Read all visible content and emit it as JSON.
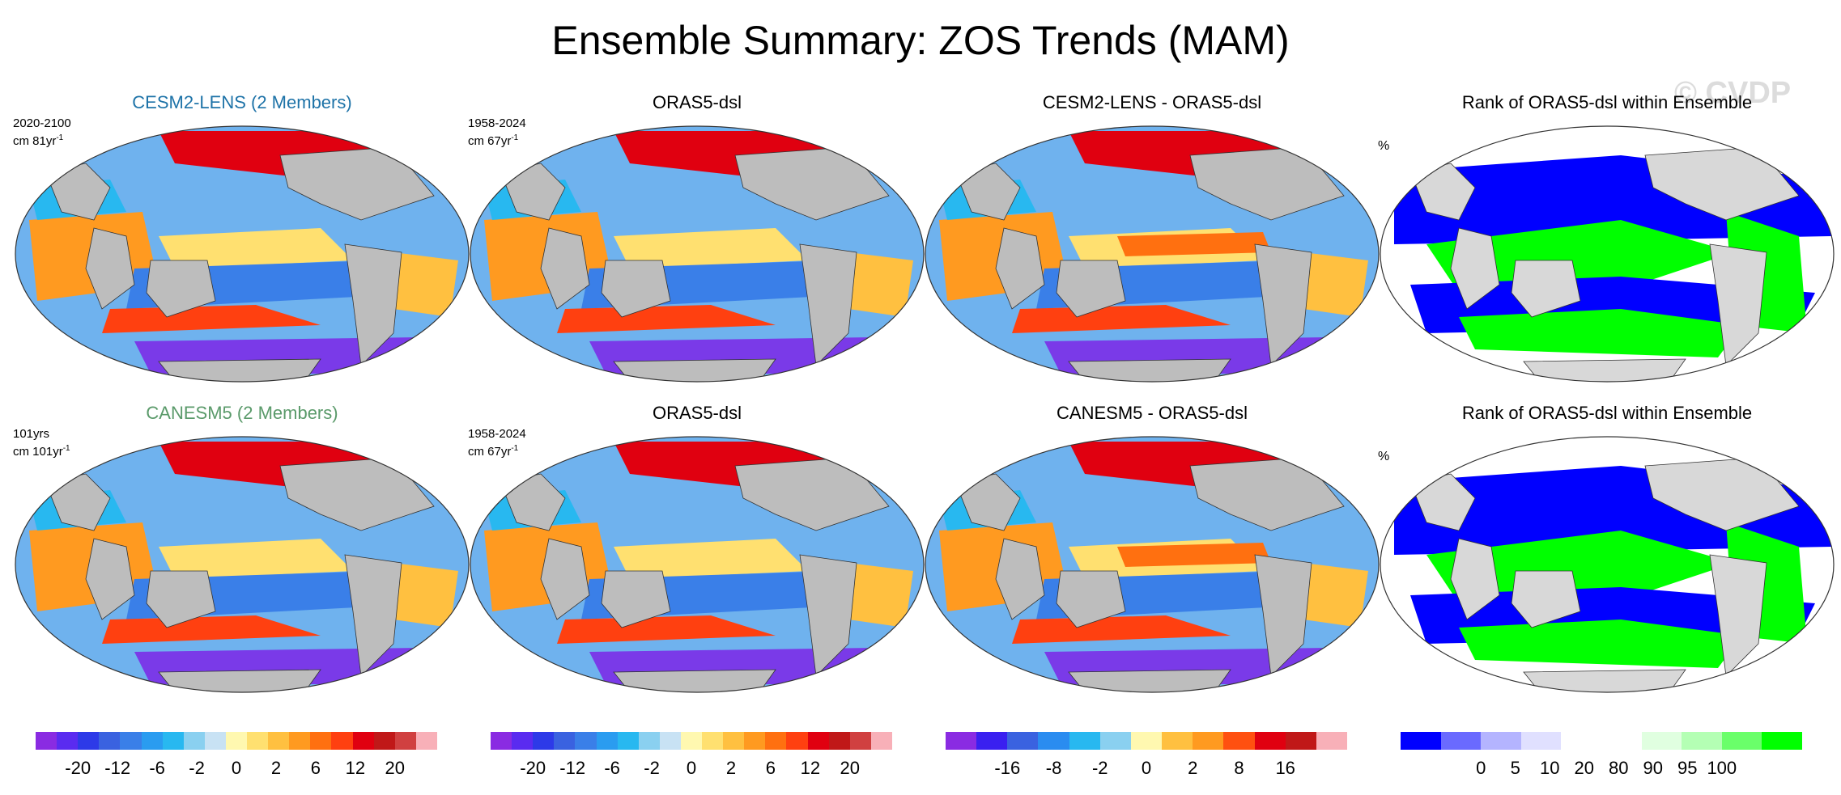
{
  "figure_title": "Ensemble Summary: ZOS Trends (MAM)",
  "watermark": "© CVDP",
  "rows": [
    {
      "panels": [
        {
          "title": "CESM2-LENS (2 Members)",
          "title_color": "#1e73a8",
          "meta_line1": "2020-2100",
          "meta_line2_prefix": "cm 81yr",
          "meta_sup": "-1",
          "kind": "model"
        },
        {
          "title": "ORAS5-dsl",
          "meta_line1": "1958-2024",
          "meta_line2_prefix": "cm 67yr",
          "meta_sup": "-1",
          "kind": "obs"
        },
        {
          "title": "CESM2-LENS - ORAS5-dsl",
          "kind": "diff"
        },
        {
          "title": "Rank of ORAS5-dsl within Ensemble",
          "unit": "%",
          "kind": "rank"
        }
      ]
    },
    {
      "panels": [
        {
          "title": "CANESM5 (2 Members)",
          "title_color": "#5a9a6a",
          "meta_line1": "101yrs",
          "meta_line2_prefix": "cm 101yr",
          "meta_sup": "-1",
          "kind": "model"
        },
        {
          "title": "ORAS5-dsl",
          "meta_line1": "1958-2024",
          "meta_line2_prefix": "cm 67yr",
          "meta_sup": "-1",
          "kind": "obs"
        },
        {
          "title": "CANESM5 - ORAS5-dsl",
          "kind": "diff"
        },
        {
          "title": "Rank of ORAS5-dsl within Ensemble",
          "unit": "%",
          "kind": "rank"
        }
      ]
    }
  ],
  "colorbars": [
    {
      "colors": [
        "#8a2be2",
        "#5a2bf0",
        "#2d3ae8",
        "#3a62e0",
        "#3a7fe8",
        "#2a9cf0",
        "#28b8f0",
        "#8ad0f0",
        "#c8e2f4",
        "#fff8b0",
        "#ffe070",
        "#ffc040",
        "#ff9a20",
        "#ff7010",
        "#ff4010",
        "#e00010",
        "#c01818",
        "#d04040",
        "#f8b0b8"
      ],
      "labels": [
        "-20",
        "-12",
        "-6",
        "-2",
        "0",
        "2",
        "6",
        "12",
        "20"
      ]
    },
    {
      "colors": [
        "#8a2be2",
        "#5a2bf0",
        "#2d3ae8",
        "#3a62e0",
        "#3a7fe8",
        "#2a9cf0",
        "#28b8f0",
        "#8ad0f0",
        "#c8e2f4",
        "#fff8b0",
        "#ffe070",
        "#ffc040",
        "#ff9a20",
        "#ff7010",
        "#ff4010",
        "#e00010",
        "#c01818",
        "#d04040",
        "#f8b0b8"
      ],
      "labels": [
        "-20",
        "-12",
        "-6",
        "-2",
        "0",
        "2",
        "6",
        "12",
        "20"
      ]
    },
    {
      "colors": [
        "#8a2be2",
        "#3a20f0",
        "#3a62e0",
        "#2a8cf0",
        "#28b8f0",
        "#8ad0f0",
        "#fff8b0",
        "#ffc040",
        "#ff9a20",
        "#ff5010",
        "#e00010",
        "#c01818",
        "#f8b0b8"
      ],
      "labels": [
        "-16",
        "-8",
        "-2",
        "0",
        "2",
        "8",
        "16"
      ]
    },
    {
      "colors": [
        "#0000ff",
        "#6a6aff",
        "#b4b4ff",
        "#e0e0ff",
        "#ffffff",
        "#ffffff",
        "#e0ffe0",
        "#b4ffb4",
        "#6aff6a",
        "#00ff00"
      ],
      "labels": [
        "0",
        "5",
        "10",
        "20",
        "80",
        "90",
        "95",
        "100"
      ]
    }
  ]
}
